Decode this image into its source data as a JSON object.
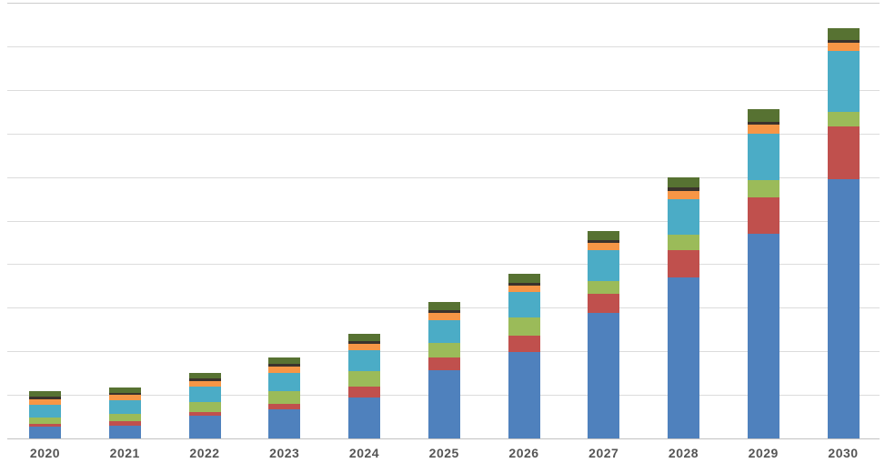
{
  "chart_data": {
    "type": "bar",
    "subtype": "stacked",
    "title": "",
    "xlabel": "",
    "ylabel": "",
    "y_axis_labels_visible": false,
    "legend": "none",
    "grid": true,
    "gridline_count": 11,
    "ylim": [
      0,
      100
    ],
    "categories": [
      "2020",
      "2021",
      "2022",
      "2023",
      "2024",
      "2025",
      "2026",
      "2027",
      "2028",
      "2029",
      "2030"
    ],
    "series": [
      {
        "name": "blue",
        "color": "#4F81BD",
        "values": [
          2.8,
          3.0,
          5.2,
          6.6,
          9.5,
          15.7,
          19.8,
          28.9,
          36.9,
          47.0,
          59.4
        ]
      },
      {
        "name": "red",
        "color": "#C0504D",
        "values": [
          0.6,
          0.9,
          0.8,
          1.4,
          2.4,
          2.8,
          3.8,
          4.2,
          6.3,
          8.4,
          12.3
        ]
      },
      {
        "name": "green",
        "color": "#9BBB59",
        "values": [
          1.5,
          1.7,
          2.4,
          2.8,
          3.6,
          3.5,
          4.2,
          3.1,
          3.6,
          3.8,
          3.3
        ]
      },
      {
        "name": "teal",
        "color": "#4BACC6",
        "values": [
          2.9,
          3.1,
          3.5,
          4.2,
          4.7,
          5.2,
          5.8,
          7.1,
          8.2,
          10.7,
          14.0
        ]
      },
      {
        "name": "orange",
        "color": "#F79646",
        "values": [
          1.2,
          1.25,
          1.25,
          1.4,
          1.55,
          1.6,
          1.4,
          1.5,
          1.7,
          2.1,
          1.9
        ]
      },
      {
        "name": "dark-brown",
        "color": "#3B332C",
        "values": [
          0.55,
          0.6,
          0.6,
          0.7,
          0.7,
          0.6,
          0.8,
          0.8,
          0.9,
          0.7,
          0.6
        ]
      },
      {
        "name": "dark-olive",
        "color": "#577232",
        "values": [
          1.25,
          1.25,
          1.25,
          1.4,
          1.6,
          1.9,
          2.1,
          2.1,
          2.4,
          2.9,
          2.7
        ]
      }
    ],
    "totals": [
      10.8,
      11.8,
      15.0,
      18.5,
      24.0,
      31.3,
      37.9,
      47.7,
      60.0,
      75.6,
      94.2
    ],
    "colors": {
      "gridline": "#dcdcdc",
      "baseline": "#c2c2c2",
      "x_label": "#555555",
      "background": "#ffffff"
    }
  }
}
